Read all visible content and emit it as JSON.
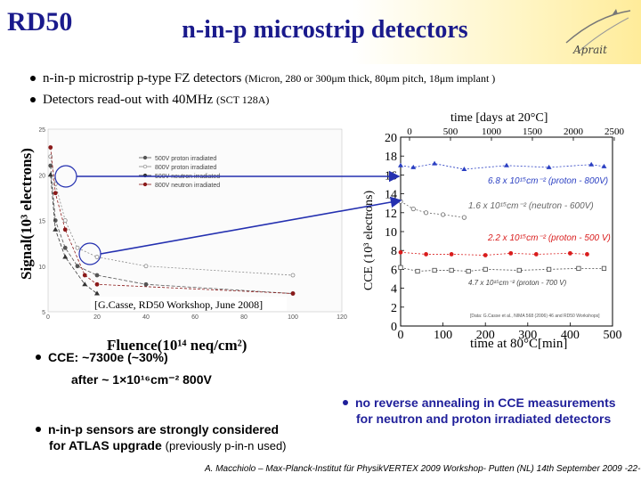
{
  "header": {
    "brand": "RD50",
    "title": "n-in-p microstrip detectors",
    "logo_text": "Aprait"
  },
  "bullets": [
    {
      "main": "n-in-p microstrip p-type FZ detectors",
      "detail": "(Micron, 280 or 300μm thick, 80μm pitch, 18μm implant )"
    },
    {
      "main": "Detectors read-out with 40MHz",
      "detail": "(SCT 128A)"
    }
  ],
  "left_plot": {
    "ylabel": "Signal(10³ electrons)",
    "xlabel": "Fluence(10¹⁴ neq/cm²)",
    "reference": "[G.Casse, RD50 Workshop, June 2008]",
    "legend": [
      "500V proton irradiated",
      "800V proton irradiated",
      "500V neutron irradiated",
      "800V neutron irradiated"
    ],
    "xticks": [
      "0",
      "20",
      "40",
      "60",
      "80",
      "100",
      "120"
    ],
    "yticks": [
      "5",
      "10",
      "15",
      "20",
      "25"
    ]
  },
  "right_plot": {
    "top_axis_label": "time [days at 20°C]",
    "top_ticks": [
      "0",
      "500",
      "1000",
      "1500",
      "2000",
      "2500"
    ],
    "ylabel": "CCE (10³ electrons)",
    "yticks": [
      "0",
      "2",
      "4",
      "6",
      "8",
      "10",
      "12",
      "14",
      "16",
      "18",
      "20"
    ],
    "xticks": [
      "0",
      "100",
      "200",
      "300",
      "400",
      "500"
    ],
    "xlabel": "time at 80°C[min]",
    "labels": [
      "6.8 x 10¹⁵cm⁻² (proton - 800V)",
      "1.6 x 10¹⁵cm⁻² (neutron - 600V)",
      "2.2 x 10¹⁵cm⁻² (proton - 500 V)",
      "4.7 x 10¹⁵cm⁻² (proton - 700 V)"
    ],
    "footnote": "[Data: G.Casse et al., NIMA 568 (2006) 46 and RD50 Workshops]"
  },
  "notes": {
    "cce_line1": "CCE: ~7300e (~30%)",
    "cce_line2": "after ~ 1×10¹⁶cm⁻² 800V",
    "sensors_line1": "n-in-p sensors are strongly considered",
    "sensors_line2": "for ATLAS upgrade",
    "sensors_detail": "(previously p-in-n used)",
    "annealing_line1": "no reverse annealing in CCE measurements",
    "annealing_line2": "for neutron and proton irradiated detectors"
  },
  "footer": {
    "author": "A. Macchiolo – Max-Planck-Institut für Physik",
    "event": "VERTEX 2009 Workshop- Putten (NL) 14th September 2009 -22-"
  },
  "chart_data": [
    {
      "type": "scatter",
      "title": "",
      "xlabel": "Fluence(10¹⁴ neq/cm²)",
      "ylabel": "Signal(10³ electrons)",
      "xlim": [
        0,
        120
      ],
      "ylim": [
        5,
        25
      ],
      "series": [
        {
          "name": "500V proton irradiated",
          "x": [
            1,
            3,
            7,
            12,
            20,
            40,
            100
          ],
          "values": [
            21,
            15,
            12,
            10,
            9,
            8,
            7
          ]
        },
        {
          "name": "800V proton irradiated",
          "x": [
            1,
            3,
            7,
            12,
            20,
            40,
            100
          ],
          "values": [
            22,
            19,
            15,
            12,
            11,
            10,
            9
          ]
        },
        {
          "name": "500V neutron irradiated",
          "x": [
            1,
            3,
            7,
            15,
            20
          ],
          "values": [
            20,
            14,
            11,
            8,
            7
          ]
        },
        {
          "name": "800V neutron irradiated",
          "x": [
            1,
            3,
            7,
            15,
            20,
            100
          ],
          "values": [
            23,
            18,
            14,
            9,
            8,
            7
          ]
        }
      ]
    },
    {
      "type": "line",
      "title": "",
      "xlabel": "time at 80°C[min]",
      "ylabel": "CCE (10³ electrons)",
      "xlim": [
        0,
        500
      ],
      "ylim": [
        0,
        20
      ],
      "series": [
        {
          "name": "6.8 x 10¹⁵cm⁻² (proton - 800V)",
          "x": [
            0,
            30,
            80,
            150,
            250,
            350,
            450,
            480
          ],
          "values": [
            17,
            16.8,
            17.2,
            16.6,
            17.0,
            16.8,
            17.1,
            16.9
          ]
        },
        {
          "name": "1.6 x 10¹⁵cm⁻² (neutron - 600V)",
          "x": [
            0,
            30,
            60,
            100,
            150
          ],
          "values": [
            13.2,
            12.4,
            12.0,
            11.8,
            11.5
          ]
        },
        {
          "name": "2.2 x 10¹⁵cm⁻² (proton - 500 V)",
          "x": [
            0,
            60,
            120,
            200,
            260,
            320,
            400,
            440
          ],
          "values": [
            7.8,
            7.6,
            7.6,
            7.5,
            7.7,
            7.6,
            7.7,
            7.6
          ]
        },
        {
          "name": "4.7 x 10¹⁵cm⁻² (proton - 700 V)",
          "x": [
            0,
            40,
            80,
            120,
            160,
            200,
            280,
            350,
            420,
            480
          ],
          "values": [
            6.2,
            5.8,
            5.9,
            5.9,
            5.8,
            6.0,
            5.9,
            6.0,
            6.1,
            6.1
          ]
        }
      ]
    }
  ]
}
